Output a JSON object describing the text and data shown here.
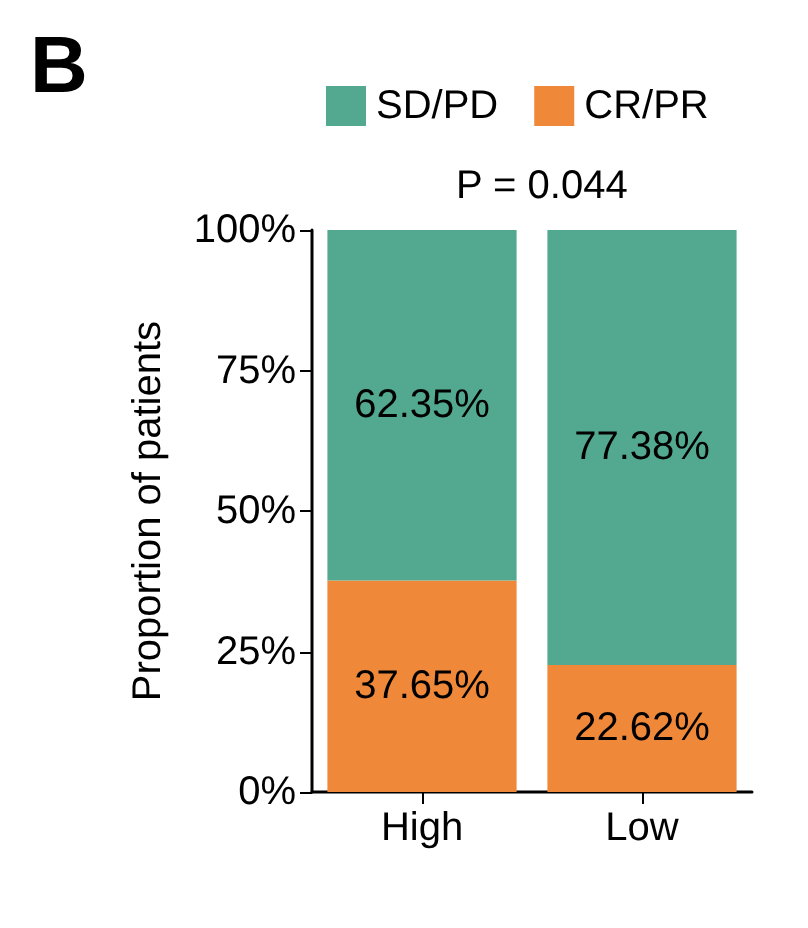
{
  "chart_data": {
    "type": "bar",
    "title": "B",
    "ylabel": "Proportion of patients",
    "annotations": [
      "P = 0.044"
    ],
    "categories": [
      "High",
      "Low"
    ],
    "stacked": true,
    "legend": "top",
    "grid": false,
    "series": [
      {
        "name": "CR/PR",
        "color": "#f0883a",
        "values": [
          37.65,
          22.62
        ],
        "value_labels": [
          "37.65%",
          "22.62%"
        ]
      },
      {
        "name": "SD/PD",
        "color": "#52a98f",
        "values": [
          62.35,
          77.38
        ],
        "value_labels": [
          "62.35%",
          "77.38%"
        ]
      }
    ],
    "ylim": [
      0,
      100
    ],
    "yticks": [
      {
        "value": 0,
        "label": "0%"
      },
      {
        "value": 25,
        "label": "25%"
      },
      {
        "value": 50,
        "label": "50%"
      },
      {
        "value": 75,
        "label": "75%"
      },
      {
        "value": 100,
        "label": "100%"
      }
    ]
  }
}
